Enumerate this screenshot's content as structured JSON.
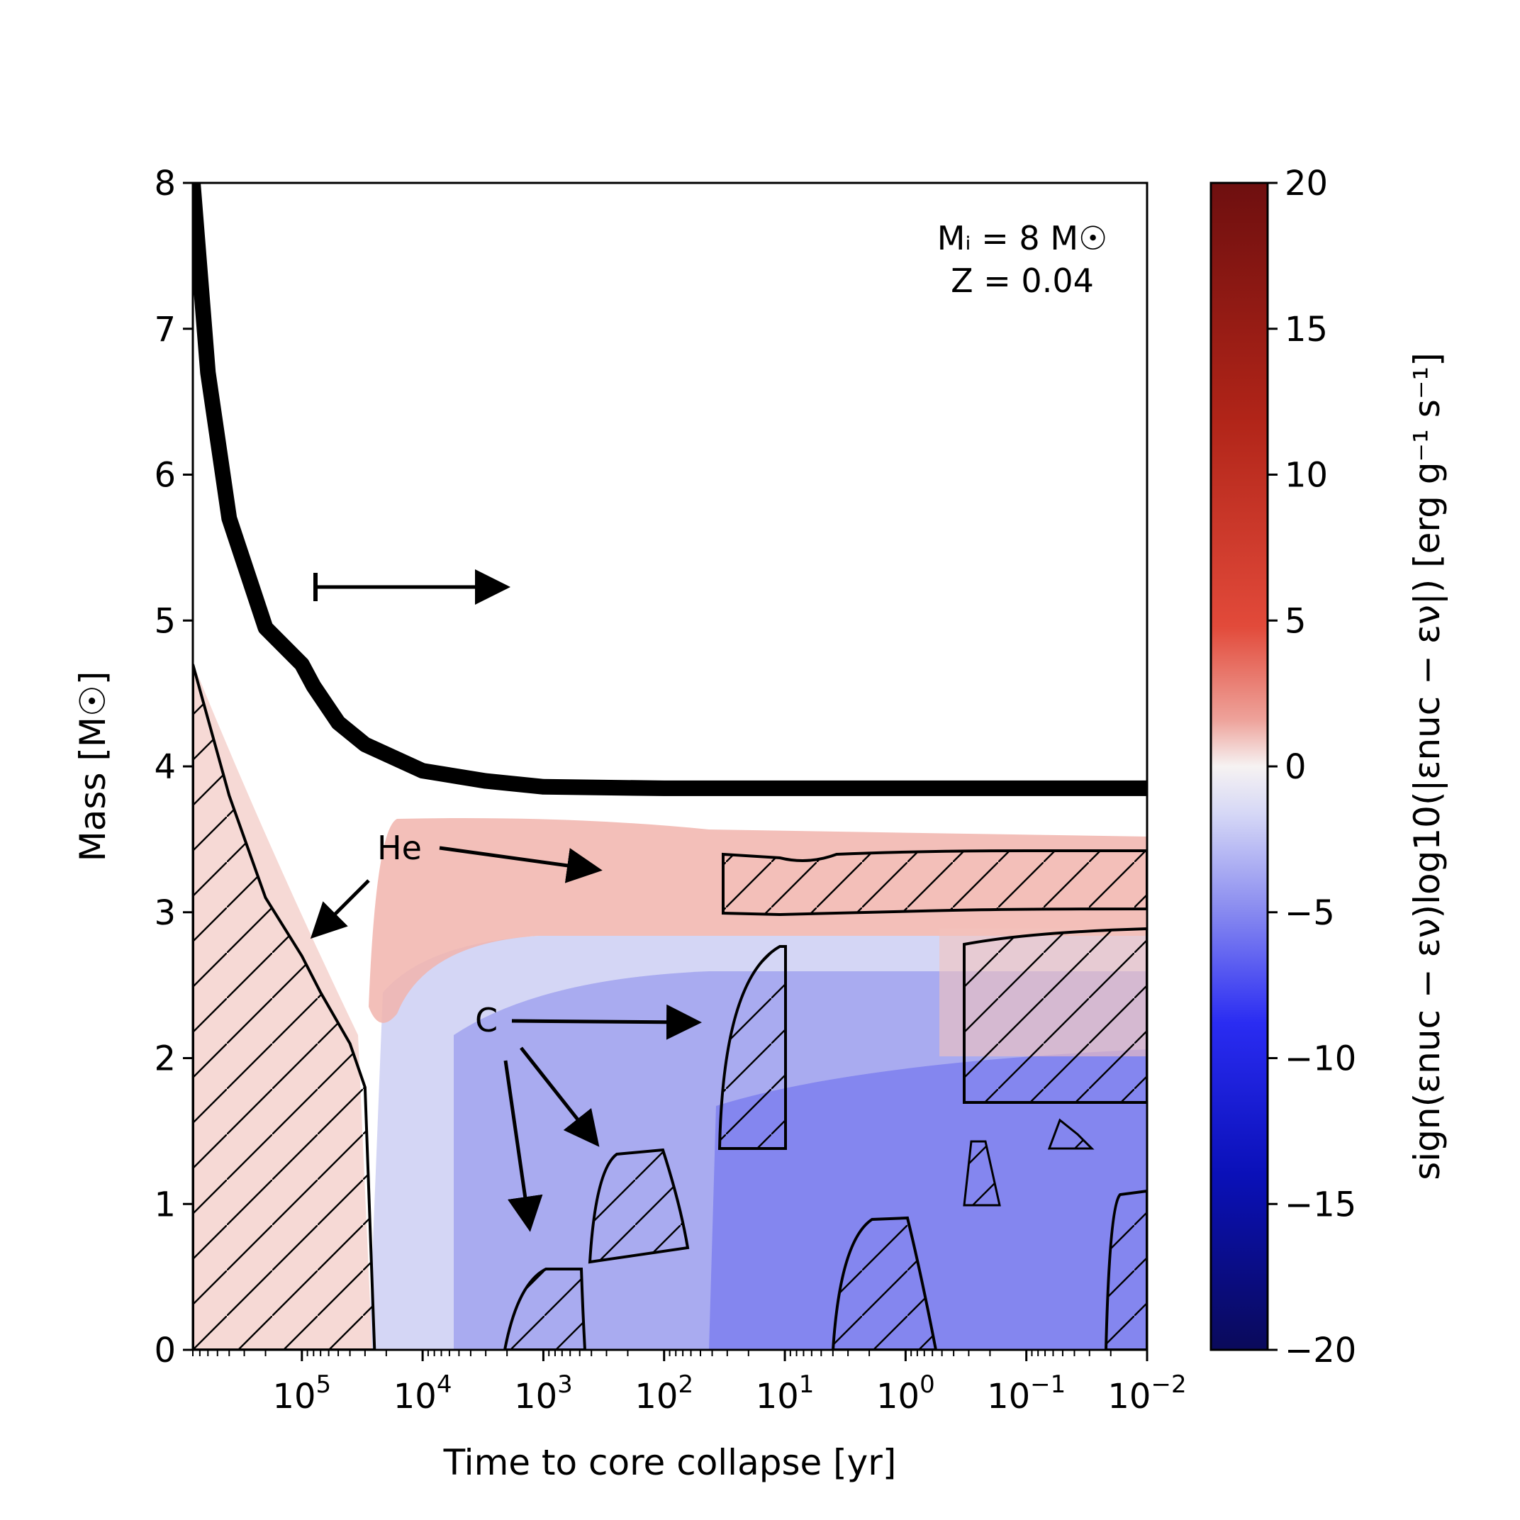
{
  "chart_data": {
    "type": "heatmap",
    "xlabel": "Time to core collapse [yr]",
    "ylabel": "Mass [M☉]",
    "colorbar_label": "sign(εnuc − εν)log10(|εnuc − εν|) [erg g⁻¹ s⁻¹]",
    "x_scale": "log, reversed",
    "xlim": [
      800000.0,
      0.01
    ],
    "ylim": [
      0,
      8
    ],
    "colorbar_lim": [
      -20,
      20
    ],
    "x_ticks": [
      {
        "value": 100000,
        "base": "10",
        "exp": "5"
      },
      {
        "value": 10000,
        "base": "10",
        "exp": "4"
      },
      {
        "value": 1000,
        "base": "10",
        "exp": "3"
      },
      {
        "value": 100,
        "base": "10",
        "exp": "2"
      },
      {
        "value": 10,
        "base": "10",
        "exp": "1"
      },
      {
        "value": 1,
        "base": "10",
        "exp": "0"
      },
      {
        "value": 0.1,
        "base": "10",
        "exp": "−1"
      },
      {
        "value": 0.01,
        "base": "10",
        "exp": "−2"
      }
    ],
    "y_ticks": [
      "0",
      "1",
      "2",
      "3",
      "4",
      "5",
      "6",
      "7",
      "8"
    ],
    "colorbar_ticks": [
      "20",
      "15",
      "10",
      "5",
      "0",
      "−5",
      "−10",
      "−15",
      "−20"
    ],
    "annotation_lines": [
      "Mᵢ = 8 M☉",
      "Z = 0.04"
    ],
    "arrow_labels": {
      "he": "He",
      "c": "C"
    },
    "total_mass_curve": {
      "name": "",
      "x": [
        800000.0,
        600000.0,
        400000.0,
        200000.0,
        100000.0,
        80000.0,
        50000.0,
        30000.0,
        10000.0,
        3000.0,
        1000.0,
        100,
        10,
        1,
        0.1,
        0.01
      ],
      "y": [
        8.0,
        6.7,
        5.7,
        4.95,
        4.7,
        4.55,
        4.3,
        4.15,
        3.97,
        3.9,
        3.86,
        3.85,
        3.85,
        3.85,
        3.85,
        3.85
      ]
    },
    "he_convective_core": {
      "x": [
        800000.0,
        400000.0,
        200000.0,
        100000.0,
        70000.0,
        40000.0,
        30000.0,
        25000.0
      ],
      "y": [
        4.7,
        3.8,
        3.1,
        2.7,
        2.45,
        2.1,
        1.8,
        0.0
      ]
    },
    "colors": {
      "positive_light": "#f8dcd8",
      "positive_mid": "#f1b4ad",
      "negative_light": "#d4d6f5",
      "negative_mid": "#a9abf0",
      "negative_deep": "#8486ef"
    }
  }
}
